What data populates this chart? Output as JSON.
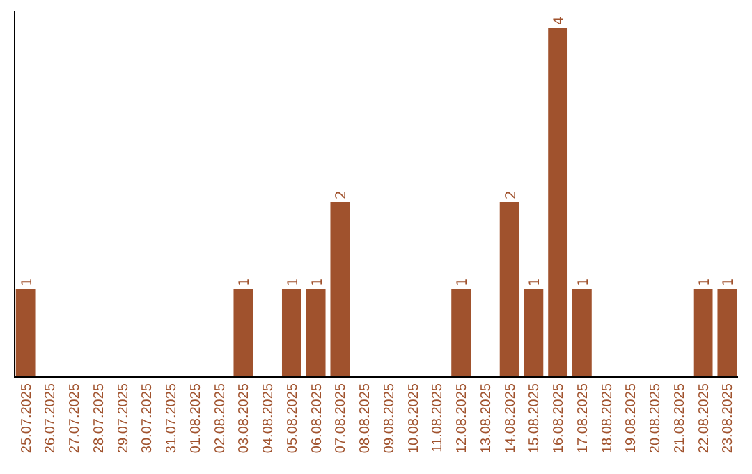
{
  "chart_data": {
    "type": "bar",
    "categories": [
      "25.07.2025",
      "26.07.2025",
      "27.07.2025",
      "28.07.2025",
      "29.07.2025",
      "30.07.2025",
      "31.07.2025",
      "01.08.2025",
      "02.08.2025",
      "03.08.2025",
      "04.08.2025",
      "05.08.2025",
      "06.08.2025",
      "07.08.2025",
      "08.08.2025",
      "09.08.2025",
      "10.08.2025",
      "11.08.2025",
      "12.08.2025",
      "13.08.2025",
      "14.08.2025",
      "15.08.2025",
      "16.08.2025",
      "17.08.2025",
      "18.08.2025",
      "19.08.2025",
      "20.08.2025",
      "21.08.2025",
      "22.08.2025",
      "23.08.2025"
    ],
    "values": [
      1,
      0,
      0,
      0,
      0,
      0,
      0,
      0,
      0,
      1,
      0,
      1,
      1,
      2,
      0,
      0,
      0,
      0,
      1,
      0,
      2,
      1,
      4,
      1,
      0,
      0,
      0,
      0,
      1,
      1
    ],
    "value_labels": [
      "1",
      null,
      null,
      null,
      null,
      null,
      null,
      null,
      null,
      "1",
      null,
      "1",
      "1",
      "2",
      null,
      null,
      null,
      null,
      "1",
      null,
      "2",
      "1",
      "4",
      "1",
      null,
      null,
      null,
      null,
      "1",
      "1"
    ],
    "color": "#a0522d",
    "tick_labels": "x"
  }
}
